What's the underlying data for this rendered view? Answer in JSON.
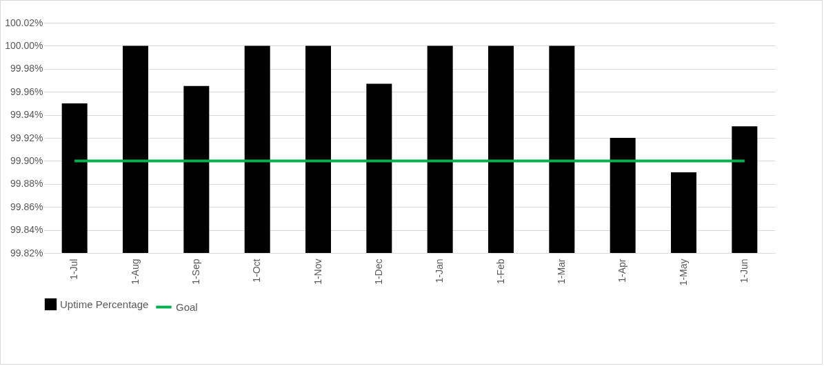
{
  "chart_data": {
    "type": "bar",
    "categories": [
      "1-Jul",
      "1-Aug",
      "1-Sep",
      "1-Oct",
      "1-Nov",
      "1-Dec",
      "1-Jan",
      "1-Feb",
      "1-Mar",
      "1-Apr",
      "1-May",
      "1-Jun"
    ],
    "series": [
      {
        "name": "Uptime Percentage",
        "color": "#000000",
        "values": [
          99.95,
          100.0,
          99.965,
          100.0,
          100.0,
          99.967,
          100.0,
          100.0,
          100.0,
          99.92,
          99.89,
          99.93
        ]
      },
      {
        "name": "Goal",
        "type": "line",
        "color": "#00b050",
        "values": [
          99.9,
          99.9,
          99.9,
          99.9,
          99.9,
          99.9,
          99.9,
          99.9,
          99.9,
          99.9,
          99.9,
          99.9
        ]
      }
    ],
    "ylim": [
      99.82,
      100.02
    ],
    "yticks": [
      {
        "value": 99.82,
        "label": "99.82%"
      },
      {
        "value": 99.84,
        "label": "99.84%"
      },
      {
        "value": 99.86,
        "label": "99.86%"
      },
      {
        "value": 99.88,
        "label": "99.88%"
      },
      {
        "value": 99.9,
        "label": "99.90%"
      },
      {
        "value": 99.92,
        "label": "99.92%"
      },
      {
        "value": 99.94,
        "label": "99.94%"
      },
      {
        "value": 99.96,
        "label": "99.96%"
      },
      {
        "value": 99.98,
        "label": "99.98%"
      },
      {
        "value": 100.0,
        "label": "100.00%"
      },
      {
        "value": 100.02,
        "label": "100.02%"
      }
    ],
    "grid": "y",
    "legend": "bottom"
  }
}
